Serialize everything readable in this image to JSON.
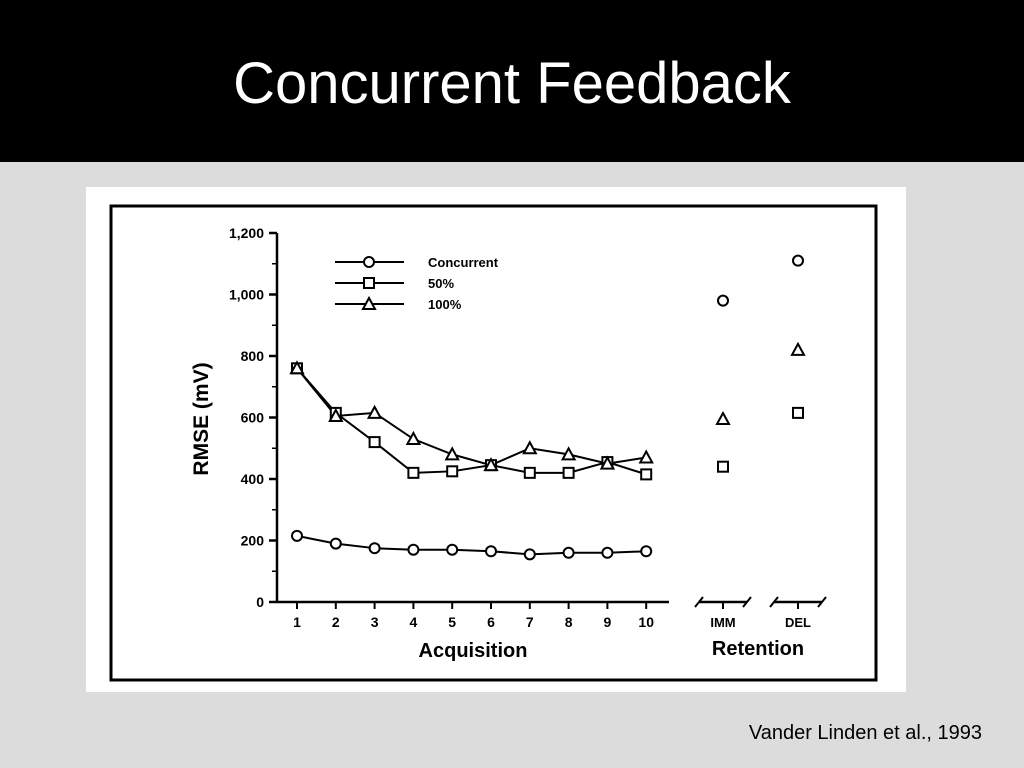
{
  "slide": {
    "title": "Concurrent Feedback",
    "citation": "Vander Linden et al., 1993"
  },
  "chart_data": {
    "type": "line",
    "title": "",
    "ylabel": "RMSE (mV)",
    "xlabel_acquisition": "Acquisition",
    "xlabel_retention": "Retention",
    "ylim": [
      0,
      1200
    ],
    "yticks": [
      0,
      200,
      400,
      600,
      800,
      1000,
      1200
    ],
    "ytick_labels": [
      "0",
      "200",
      "400",
      "600",
      "800",
      "1,000",
      "1,200"
    ],
    "acquisition_x": [
      "1",
      "2",
      "3",
      "4",
      "5",
      "6",
      "7",
      "8",
      "9",
      "10"
    ],
    "retention_x": [
      "IMM",
      "DEL"
    ],
    "legend_position": "top-left",
    "grid": false,
    "series": [
      {
        "name": "Concurrent",
        "marker": "circle",
        "acquisition": [
          215,
          190,
          175,
          170,
          170,
          165,
          155,
          160,
          160,
          165
        ],
        "retention": [
          980,
          1110
        ]
      },
      {
        "name": "50%",
        "marker": "square",
        "acquisition": [
          760,
          615,
          520,
          420,
          425,
          445,
          420,
          420,
          455,
          415
        ],
        "retention": [
          440,
          615
        ]
      },
      {
        "name": "100%",
        "marker": "triangle",
        "acquisition": [
          760,
          605,
          615,
          530,
          480,
          445,
          500,
          480,
          450,
          470
        ],
        "retention": [
          595,
          820
        ]
      }
    ]
  }
}
